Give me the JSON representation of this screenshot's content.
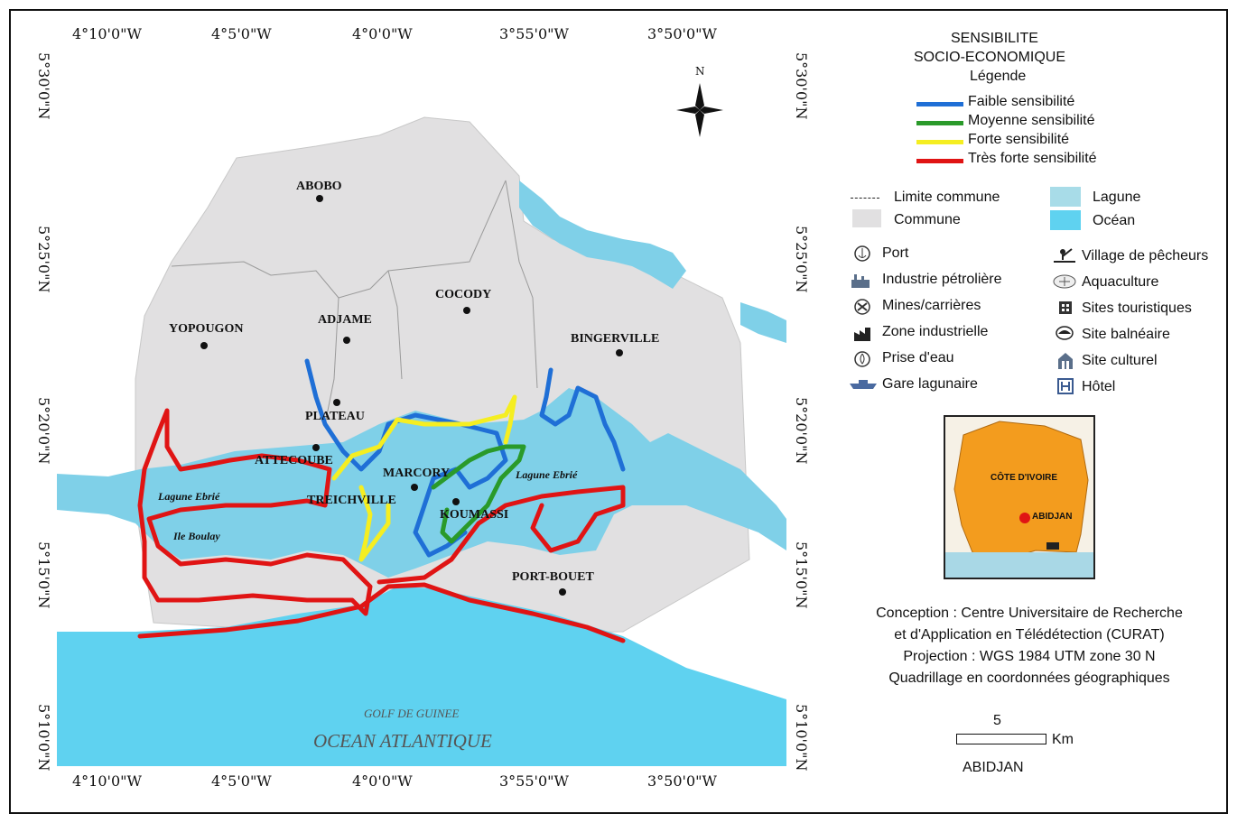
{
  "map": {
    "top_ticks": [
      "4°10'0\"W",
      "4°5'0\"W",
      "4°0'0\"W",
      "3°55'0\"W",
      "3°50'0\"W"
    ],
    "bottom_ticks": [
      "4°10'0\"W",
      "4°5'0\"W",
      "4°0'0\"W",
      "3°55'0\"W",
      "3°50'0\"W"
    ],
    "left_ticks": [
      "5°30'0\"N",
      "5°25'0\"N",
      "5°20'0\"N",
      "5°15'0\"N",
      "5°10'0\"N"
    ],
    "right_ticks": [
      "5°30'0\"N",
      "5°25'0\"N",
      "5°20'0\"N",
      "5°15'0\"N",
      "5°10'0\"N"
    ],
    "north_label": "N",
    "places": {
      "abobo": "ABOBO",
      "cocody": "COCODY",
      "adjame": "ADJAME",
      "yopougon": "YOPOUGON",
      "bingerville": "BINGERVILLE",
      "plateau": "PLATEAU",
      "attecoube": "ATTECOUBE",
      "marcory": "MARCORY",
      "treichville": "TREICHVILLE",
      "koumassi": "KOUMASSI",
      "port_bouet": "PORT-BOUET"
    },
    "lagoon_west": "Lagune Ebrié",
    "lagoon_east": "Lagune Ebrié",
    "island": "Ile Boulay",
    "gulf": "GOLF DE GUINEE",
    "ocean": "OCEAN ATLANTIQUE",
    "colors": {
      "commune": "#e1e0e1",
      "water_lagoon": "#7fd0e8",
      "water_ocean": "#5fd2f0",
      "faible": "#1f6fd6",
      "moyenne": "#2a9a2a",
      "forte": "#f5ee21",
      "tres_forte": "#e01414"
    }
  },
  "legend": {
    "title_line1": "SENSIBILITE",
    "title_line2": "SOCIO-ECONOMIQUE",
    "subtitle": "Légende",
    "sensitivity": [
      {
        "label": "Faible sensibilité",
        "color": "#1f6fd6"
      },
      {
        "label": "Moyenne sensibilité",
        "color": "#2a9a2a"
      },
      {
        "label": "Forte sensibilité",
        "color": "#f5ee21"
      },
      {
        "label": "Très forte sensibilité",
        "color": "#e01414"
      }
    ],
    "limite_commune": "Limite commune",
    "commune": "Commune",
    "lagune": "Lagune",
    "ocean": "Océan",
    "symbols_left": [
      "Port",
      "Industrie pétrolière",
      "Mines/carrières",
      "Zone industrielle",
      "Prise d'eau",
      "Gare lagunaire"
    ],
    "symbols_right": [
      "Village de pêcheurs",
      "Aquaculture",
      "Sites touristiques",
      "Site balnéaire",
      "Site culturel",
      "Hôtel"
    ],
    "icons_left": [
      "anchor-icon",
      "oil-industry-icon",
      "mine-icon",
      "factory-icon",
      "water-intake-icon",
      "boat-station-icon"
    ],
    "icons_right": [
      "fisherman-icon",
      "aquaculture-icon",
      "tourist-site-icon",
      "beach-icon",
      "cultural-site-icon",
      "hotel-icon"
    ]
  },
  "inset": {
    "country": "CÔTE D'IVOIRE",
    "city": "ABIDJAN",
    "country_color": "#f39c1e"
  },
  "credits": {
    "line1": "Conception : Centre Universitaire de Recherche",
    "line2": "et d'Application en Télédétection (CURAT)",
    "line3": "Projection : WGS 1984 UTM zone 30 N",
    "line4": "Quadrillage en coordonnées géographiques"
  },
  "scale": {
    "value": "5",
    "unit": "Km"
  },
  "city_label": "ABIDJAN"
}
